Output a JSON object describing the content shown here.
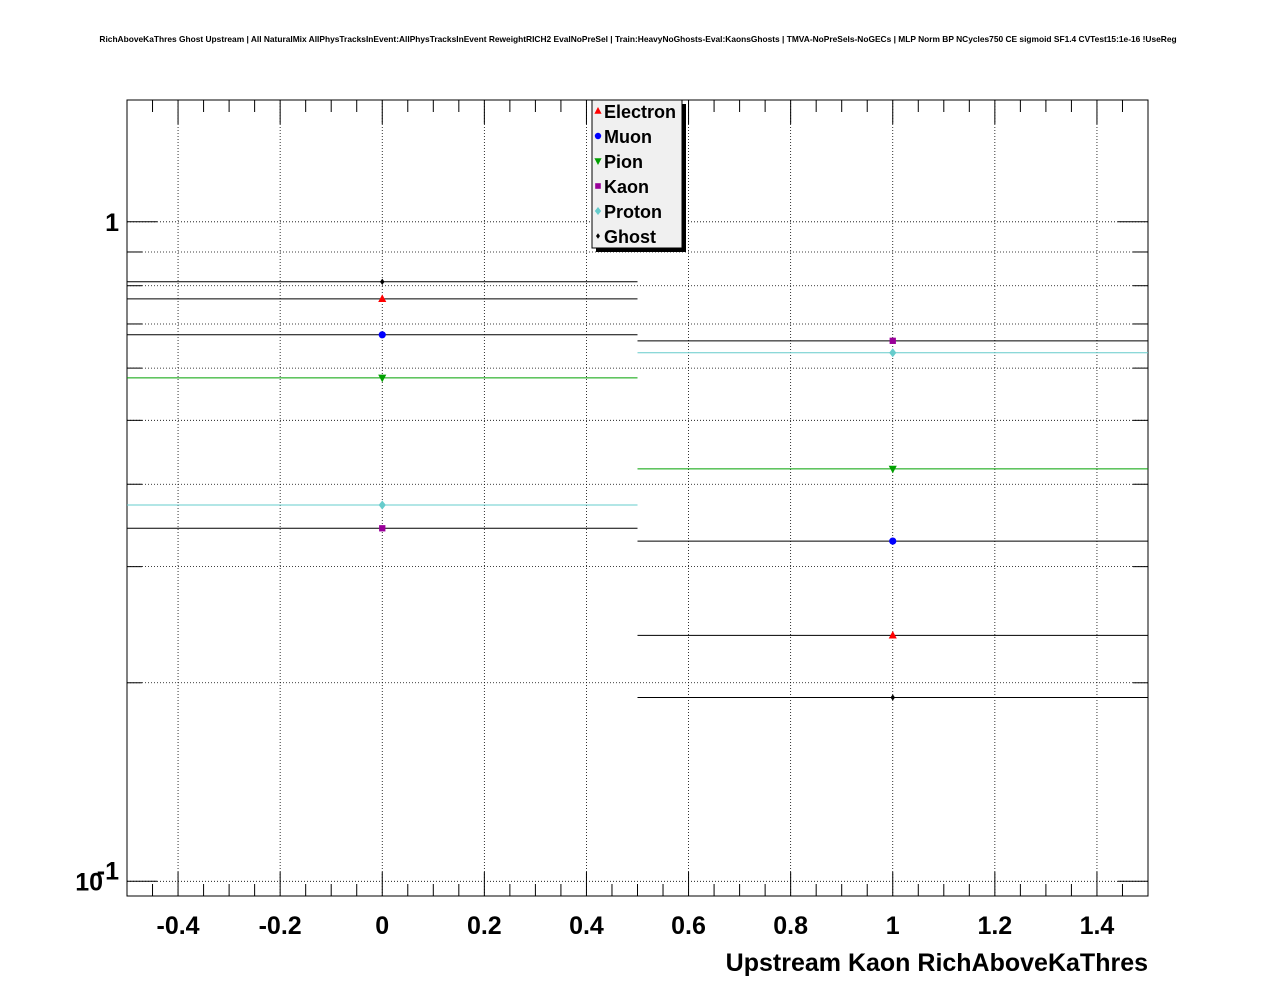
{
  "chart_data": {
    "type": "scatter",
    "title": "RichAboveKaThres Ghost Upstream | All NaturalMix AllPhysTracksInEvent:AllPhysTracksInEvent ReweightRICH2 EvalNoPreSel | Train:HeavyNoGhosts-Eval:KaonsGhosts | TMVA-NoPreSels-NoGECs | MLP Norm BP NCycles750 CE sigmoid SF1.4 CVTest15:1e-16 !UseReg",
    "xlabel": "Upstream Kaon RichAboveKaThres",
    "ylabel": "",
    "xlim": [
      -0.5,
      1.5
    ],
    "ylim": [
      0.095,
      1.53
    ],
    "yscale": "log",
    "grid": true,
    "legend_position": "top-center",
    "x_ticks": [
      "-0.4",
      "-0.2",
      "0",
      "0.2",
      "0.4",
      "0.6",
      "0.8",
      "1",
      "1.2",
      "1.4"
    ],
    "x_tick_values": [
      -0.4,
      -0.2,
      0,
      0.2,
      0.4,
      0.6,
      0.8,
      1,
      1.2,
      1.4
    ],
    "y_tick_labels": [
      {
        "value": 1,
        "base": "1",
        "exp": ""
      },
      {
        "value": 0.1,
        "base": "10",
        "exp": "-1"
      }
    ],
    "bins": [
      {
        "x": 0,
        "xerr": 0.5
      },
      {
        "x": 1,
        "xerr": 0.5
      }
    ],
    "series": [
      {
        "name": "Electron",
        "marker": "triangle-up",
        "color": "#ff0000",
        "line_color": "#000000",
        "values": [
          0.764,
          0.236
        ]
      },
      {
        "name": "Muon",
        "marker": "circle",
        "color": "#0000ff",
        "line_color": "#000000",
        "values": [
          0.674,
          0.328
        ]
      },
      {
        "name": "Pion",
        "marker": "triangle-down",
        "color": "#00a000",
        "line_color": "#00a000",
        "values": [
          0.58,
          0.422
        ]
      },
      {
        "name": "Kaon",
        "marker": "square",
        "color": "#990099",
        "line_color": "#000000",
        "values": [
          0.343,
          0.66
        ]
      },
      {
        "name": "Proton",
        "marker": "diamond",
        "color": "#66cccc",
        "line_color": "#66cccc",
        "values": [
          0.372,
          0.633
        ]
      },
      {
        "name": "Ghost",
        "marker": "small-diamond",
        "color": "#000000",
        "line_color": "#000000",
        "values": [
          0.811,
          0.19
        ]
      }
    ]
  }
}
